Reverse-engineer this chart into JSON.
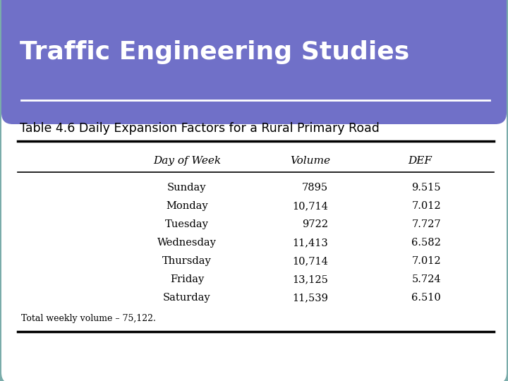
{
  "title": "Traffic Engineering Studies",
  "subtitle": "Table 4.6 Daily Expansion Factors for a Rural Primary Road",
  "col_headers": [
    "Day of Week",
    "Volume",
    "DEF"
  ],
  "rows": [
    [
      "Sunday",
      "7895",
      "9.515"
    ],
    [
      "Monday",
      "10,714",
      "7.012"
    ],
    [
      "Tuesday",
      "9722",
      "7.727"
    ],
    [
      "Wednesday",
      "11,413",
      "6.582"
    ],
    [
      "Thursday",
      "10,714",
      "7.012"
    ],
    [
      "Friday",
      "13,125",
      "5.724"
    ],
    [
      "Saturday",
      "11,539",
      "6.510"
    ]
  ],
  "footer": "Total weekly volume – 75,122.",
  "header_bg": "#7070C8",
  "header_text": "#FFFFFF",
  "outer_border_color": "#7AACAA",
  "inner_bg": "#FFFFFF",
  "subtitle_color": "#000000",
  "table_line_color": "#000000",
  "white_line_color": "#FFFFFF"
}
